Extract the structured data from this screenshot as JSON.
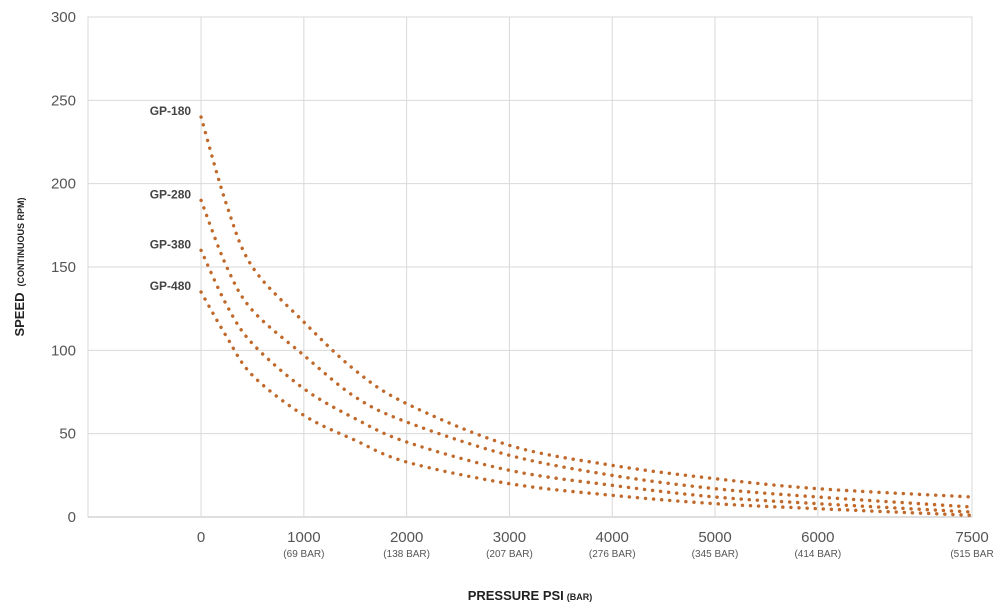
{
  "chart_data": {
    "type": "scatter",
    "xlabel": "PRESSURE  PSI",
    "xlabel_unit": "(BAR)",
    "ylabel": "SPEED",
    "ylabel_unit": "(CONTINUOUS RPM)",
    "xlim": [
      -1100,
      7500
    ],
    "ylim": [
      0,
      300
    ],
    "y_ticks": [
      "0",
      "50",
      "100",
      "150",
      "200",
      "250",
      "300"
    ],
    "x_ticks": [
      "0",
      "1000",
      "2000",
      "3000",
      "4000",
      "5000",
      "6000",
      "7500"
    ],
    "x_ticks_sub": [
      "",
      "(69 BAR)",
      "(138 BAR)",
      "(207 BAR)",
      "(276 BAR)",
      "(345 BAR)",
      "(414 BAR)",
      "(515 BAR"
    ],
    "grid": true,
    "marker_color": "#c0692a",
    "series": [
      {
        "name": "GP-180",
        "x": [
          0,
          250,
          500,
          1000,
          1500,
          2000,
          3000,
          4000,
          5000,
          6000,
          7500
        ],
        "y": [
          240,
          187,
          150,
          117,
          88,
          68,
          43,
          31,
          23,
          17,
          12
        ]
      },
      {
        "name": "GP-280",
        "x": [
          0,
          250,
          500,
          1000,
          1500,
          2000,
          3000,
          4000,
          5000,
          6000,
          7500
        ],
        "y": [
          190,
          150,
          124,
          97,
          72,
          57,
          37,
          25,
          17,
          12,
          6
        ]
      },
      {
        "name": "GP-380",
        "x": [
          0,
          250,
          500,
          1000,
          1500,
          2000,
          3000,
          4000,
          5000,
          6000,
          7500
        ],
        "y": [
          160,
          127,
          104,
          77,
          59,
          45,
          28,
          19,
          12,
          8,
          3
        ]
      },
      {
        "name": "GP-480",
        "x": [
          0,
          250,
          500,
          1000,
          1500,
          2000,
          3000,
          4000,
          5000,
          6000,
          7500
        ],
        "y": [
          135,
          108,
          85,
          61,
          46,
          33,
          20,
          13,
          8,
          5,
          1
        ]
      }
    ]
  }
}
